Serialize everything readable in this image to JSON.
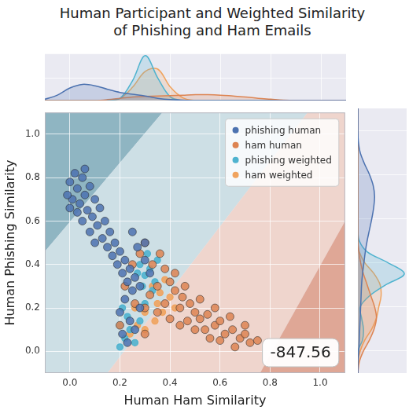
{
  "chart_data": [
    {
      "type": "scatter",
      "title": [
        "Human Participant and Weighted Similarity",
        "of Phishing and Ham Emails"
      ],
      "x_label": "Human Ham Similarity",
      "y_label": "Human Phishing Similarity",
      "xlim": [
        -0.1,
        1.1
      ],
      "ylim": [
        -0.1,
        1.1
      ],
      "xticks": [
        {
          "value": 0,
          "label": "0.0"
        },
        {
          "value": 0.2,
          "label": "0.2"
        },
        {
          "value": 0.4,
          "label": "0.4"
        },
        {
          "value": 0.6,
          "label": "0.6"
        },
        {
          "value": 0.8,
          "label": "0.8"
        },
        {
          "value": 1,
          "label": "1.0"
        }
      ],
      "yticks": [
        {
          "value": 0,
          "label": "0.0"
        },
        {
          "value": 0.2,
          "label": "0.2"
        },
        {
          "value": 0.4,
          "label": "0.4"
        },
        {
          "value": 0.6,
          "label": "0.6"
        },
        {
          "value": 0.8,
          "label": "0.8"
        },
        {
          "value": 1,
          "label": "1.0"
        }
      ],
      "grid": true,
      "legend": "upper right",
      "annotation": "-847.56",
      "regions": [
        {
          "color": "#8fb5c2",
          "polygon": [
            [
              -0.1,
              0.46
            ],
            [
              -0.1,
              1.1
            ],
            [
              0.37,
              1.1
            ]
          ]
        },
        {
          "color": "#cddfe5",
          "polygon": [
            [
              -0.1,
              -0.1
            ],
            [
              0.15,
              -0.1
            ],
            [
              0.95,
              1.1
            ],
            [
              0.37,
              1.1
            ],
            [
              -0.1,
              0.46
            ]
          ]
        },
        {
          "color": "#efd5cd",
          "polygon": [
            [
              0.15,
              -0.1
            ],
            [
              0.76,
              -0.1
            ],
            [
              1.1,
              0.6
            ],
            [
              1.1,
              1.1
            ],
            [
              0.95,
              1.1
            ]
          ]
        },
        {
          "color": "#dfa796",
          "polygon": [
            [
              0.76,
              -0.1
            ],
            [
              1.1,
              -0.1
            ],
            [
              1.1,
              0.6
            ]
          ]
        }
      ],
      "series": [
        {
          "name": "phishing human",
          "color": "#4c72b0",
          "marker": "circle",
          "values": [
            [
              0.0,
              0.78
            ],
            [
              0.02,
              0.82
            ],
            [
              0.05,
              0.8
            ],
            [
              0.03,
              0.75
            ],
            [
              0.06,
              0.72
            ],
            [
              0.08,
              0.76
            ],
            [
              0.01,
              0.7
            ],
            [
              0.04,
              0.68
            ],
            [
              0.07,
              0.65
            ],
            [
              0.1,
              0.7
            ],
            [
              0.09,
              0.62
            ],
            [
              0.12,
              0.66
            ],
            [
              0.05,
              0.6
            ],
            [
              0.11,
              0.58
            ],
            [
              0.14,
              0.6
            ],
            [
              0.08,
              0.55
            ],
            [
              0.13,
              0.52
            ],
            [
              0.16,
              0.55
            ],
            [
              0.15,
              0.48
            ],
            [
              0.18,
              0.5
            ],
            [
              0.17,
              0.44
            ],
            [
              0.2,
              0.46
            ],
            [
              0.19,
              0.4
            ],
            [
              0.22,
              0.42
            ],
            [
              0.21,
              0.36
            ],
            [
              0.24,
              0.38
            ],
            [
              0.23,
              0.32
            ],
            [
              0.26,
              0.34
            ],
            [
              0.25,
              0.28
            ],
            [
              0.28,
              0.3
            ],
            [
              0.3,
              0.42
            ],
            [
              0.27,
              0.48
            ],
            [
              0.32,
              0.36
            ],
            [
              0.22,
              0.24
            ],
            [
              0.2,
              0.18
            ],
            [
              0.24,
              0.14
            ],
            [
              0.21,
              0.08
            ],
            [
              0.26,
              0.1
            ],
            [
              0.23,
              0.04
            ],
            [
              0.28,
              0.2
            ],
            [
              -0.01,
              0.72
            ],
            [
              0.03,
              0.64
            ],
            [
              0.0,
              0.66
            ],
            [
              0.1,
              0.5
            ],
            [
              0.06,
              0.84
            ],
            [
              0.25,
              0.55
            ],
            [
              0.3,
              0.5
            ]
          ]
        },
        {
          "name": "ham human",
          "color": "#dd8452",
          "marker": "circle",
          "values": [
            [
              0.3,
              0.5
            ],
            [
              0.28,
              0.45
            ],
            [
              0.33,
              0.4
            ],
            [
              0.36,
              0.45
            ],
            [
              0.38,
              0.38
            ],
            [
              0.35,
              0.3
            ],
            [
              0.4,
              0.32
            ],
            [
              0.42,
              0.28
            ],
            [
              0.38,
              0.22
            ],
            [
              0.45,
              0.25
            ],
            [
              0.44,
              0.2
            ],
            [
              0.48,
              0.22
            ],
            [
              0.5,
              0.18
            ],
            [
              0.47,
              0.14
            ],
            [
              0.52,
              0.15
            ],
            [
              0.55,
              0.17
            ],
            [
              0.54,
              0.1
            ],
            [
              0.58,
              0.12
            ],
            [
              0.6,
              0.14
            ],
            [
              0.62,
              0.08
            ],
            [
              0.65,
              0.1
            ],
            [
              0.68,
              0.06
            ],
            [
              0.7,
              0.08
            ],
            [
              0.72,
              0.04
            ],
            [
              0.75,
              0.05
            ],
            [
              0.66,
              0.02
            ],
            [
              0.6,
              0.05
            ],
            [
              0.56,
              0.06
            ],
            [
              0.5,
              0.1
            ],
            [
              0.44,
              0.12
            ],
            [
              0.4,
              0.15
            ],
            [
              0.35,
              0.18
            ],
            [
              0.3,
              0.2
            ],
            [
              0.26,
              0.22
            ],
            [
              0.22,
              0.3
            ],
            [
              0.25,
              0.4
            ],
            [
              0.32,
              0.26
            ],
            [
              0.46,
              0.3
            ],
            [
              0.52,
              0.24
            ],
            [
              0.58,
              0.2
            ],
            [
              0.64,
              0.16
            ],
            [
              0.7,
              0.12
            ],
            [
              0.42,
              0.36
            ],
            [
              0.2,
              0.12
            ],
            [
              0.3,
              0.08
            ]
          ]
        },
        {
          "name": "phishing weighted",
          "color": "#4fb3cf",
          "marker": "circle",
          "values": [
            [
              0.28,
              0.4
            ],
            [
              0.3,
              0.35
            ],
            [
              0.32,
              0.38
            ],
            [
              0.34,
              0.32
            ],
            [
              0.29,
              0.3
            ],
            [
              0.31,
              0.45
            ],
            [
              0.35,
              0.42
            ],
            [
              0.27,
              0.36
            ],
            [
              0.33,
              0.28
            ],
            [
              0.3,
              0.22
            ],
            [
              0.2,
              0.02
            ],
            [
              0.22,
              0.06
            ],
            [
              0.24,
              0.1
            ],
            [
              0.2,
              0.12
            ],
            [
              0.26,
              0.04
            ],
            [
              0.23,
              0.16
            ],
            [
              0.28,
              0.14
            ],
            [
              0.21,
              0.2
            ]
          ]
        },
        {
          "name": "ham weighted",
          "color": "#f0a35e",
          "marker": "circle",
          "values": [
            [
              0.33,
              0.3
            ],
            [
              0.36,
              0.27
            ],
            [
              0.38,
              0.33
            ],
            [
              0.35,
              0.22
            ],
            [
              0.4,
              0.25
            ],
            [
              0.3,
              0.18
            ],
            [
              0.27,
              0.12
            ],
            [
              0.24,
              0.08
            ],
            [
              0.3,
              0.1
            ],
            [
              0.34,
              0.14
            ],
            [
              0.37,
              0.18
            ],
            [
              0.42,
              0.2
            ],
            [
              0.26,
              0.2
            ]
          ]
        }
      ]
    },
    {
      "type": "area",
      "x": [
        -0.1,
        -0.05,
        0,
        0.05,
        0.1,
        0.15,
        0.2,
        0.25,
        0.3,
        0.35,
        0.4,
        0.45,
        0.5,
        0.55,
        0.6,
        0.65,
        0.7,
        0.75,
        0.8,
        0.85,
        0.9,
        0.95,
        1,
        1.05,
        1.1
      ],
      "xlim": [
        -0.1,
        1.1
      ],
      "xticks": [
        0,
        0.2,
        0.4,
        0.6,
        0.8,
        1
      ],
      "ylim": [
        0,
        1.05
      ],
      "grid": true,
      "tick_labels": false,
      "series": [
        {
          "color": "#4c72b0",
          "values": [
            0.03,
            0.12,
            0.28,
            0.36,
            0.33,
            0.25,
            0.18,
            0.14,
            0.1,
            0.05,
            0.02,
            0.01,
            0,
            0,
            0,
            0,
            0,
            0,
            0,
            0,
            0,
            0,
            0,
            0,
            0
          ]
        },
        {
          "color": "#dd8452",
          "values": [
            0,
            0,
            0,
            0,
            0,
            0.02,
            0.05,
            0.08,
            0.09,
            0.1,
            0.11,
            0.12,
            0.13,
            0.13,
            0.12,
            0.1,
            0.08,
            0.05,
            0.03,
            0.01,
            0,
            0,
            0,
            0,
            0
          ]
        },
        {
          "color": "#4fb3cf",
          "values": [
            0,
            0,
            0,
            0,
            0,
            0.01,
            0.05,
            0.45,
            1.0,
            0.5,
            0.08,
            0,
            0,
            0,
            0,
            0,
            0,
            0,
            0,
            0,
            0,
            0,
            0,
            0,
            0
          ]
        },
        {
          "color": "#f0a35e",
          "values": [
            0,
            0,
            0,
            0,
            0,
            0,
            0.05,
            0.3,
            0.65,
            0.7,
            0.3,
            0.06,
            0,
            0,
            0,
            0,
            0,
            0,
            0,
            0,
            0,
            0,
            0,
            0,
            0
          ]
        }
      ]
    },
    {
      "type": "area",
      "orientation": "horizontal",
      "y": [
        -0.1,
        -0.05,
        0,
        0.05,
        0.1,
        0.15,
        0.2,
        0.25,
        0.3,
        0.35,
        0.4,
        0.45,
        0.5,
        0.55,
        0.6,
        0.65,
        0.7,
        0.75,
        0.8,
        0.85,
        0.9,
        0.95,
        1,
        1.05,
        1.1
      ],
      "ylim": [
        -0.1,
        1.1
      ],
      "yticks": [
        0,
        0.2,
        0.4,
        0.6,
        0.8,
        1
      ],
      "xlim": [
        0,
        1.05
      ],
      "grid": true,
      "tick_labels": false,
      "series": [
        {
          "color": "#4c72b0",
          "values": [
            0,
            0,
            0.02,
            0.03,
            0.04,
            0.05,
            0.06,
            0.07,
            0.08,
            0.1,
            0.13,
            0.16,
            0.2,
            0.25,
            0.3,
            0.34,
            0.36,
            0.33,
            0.25,
            0.14,
            0.05,
            0.01,
            0,
            0,
            0
          ]
        },
        {
          "color": "#dd8452",
          "values": [
            0,
            0.03,
            0.12,
            0.25,
            0.35,
            0.4,
            0.36,
            0.28,
            0.2,
            0.12,
            0.06,
            0.02,
            0,
            0,
            0,
            0,
            0,
            0,
            0,
            0,
            0,
            0,
            0,
            0,
            0
          ]
        },
        {
          "color": "#4fb3cf",
          "values": [
            0,
            0,
            0,
            0.1,
            0.12,
            0.08,
            0.05,
            0.25,
            0.6,
            1.0,
            0.65,
            0.2,
            0.03,
            0,
            0,
            0,
            0,
            0,
            0,
            0,
            0,
            0,
            0,
            0,
            0
          ]
        },
        {
          "color": "#f0a35e",
          "values": [
            0,
            0,
            0.05,
            0.15,
            0.3,
            0.4,
            0.45,
            0.5,
            0.48,
            0.35,
            0.15,
            0.03,
            0,
            0,
            0,
            0,
            0,
            0,
            0,
            0,
            0,
            0,
            0,
            0,
            0
          ]
        }
      ]
    }
  ]
}
